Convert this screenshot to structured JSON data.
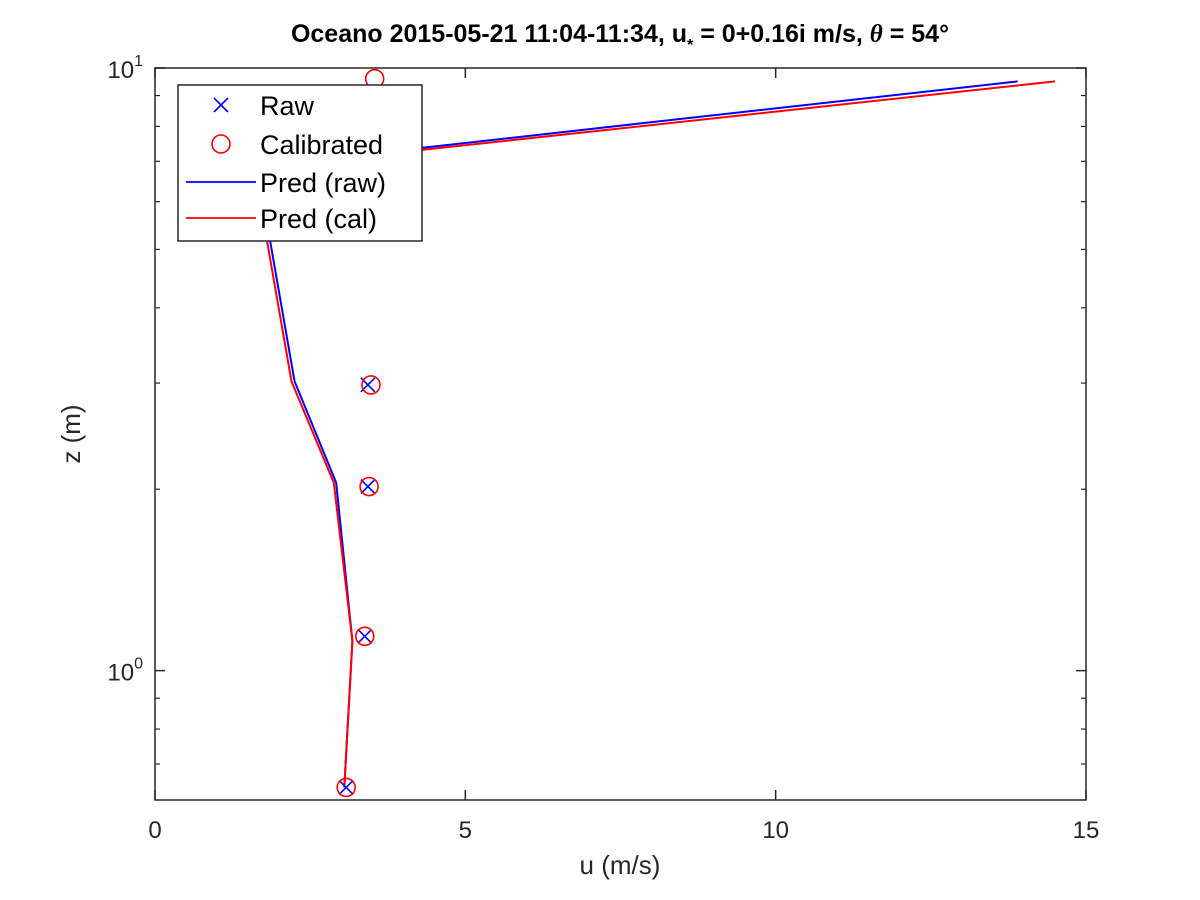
{
  "chart_data": {
    "type": "line",
    "title": {
      "prefix": "Oceano 2015-05-21 11:04-11:34, u",
      "subscript": "*",
      "middle": " = 0+0.16i m/s, ",
      "theta": "θ",
      "suffix": " = 54°"
    },
    "xlabel": "u (m/s)",
    "ylabel": "z (m)",
    "xlim": [
      0,
      15
    ],
    "ylim": [
      0.61,
      10
    ],
    "yscale": "log",
    "xticks": [
      0,
      5,
      10,
      15
    ],
    "xtick_labels": [
      "0",
      "5",
      "10",
      "15"
    ],
    "yticks": [
      1,
      10
    ],
    "ytick_labels": [
      {
        "base": "10",
        "exp": "0"
      },
      {
        "base": "10",
        "exp": "1"
      }
    ],
    "grid": false,
    "legend_position": "top-left",
    "series": [
      {
        "name": "Raw",
        "kind": "marker",
        "marker": "x",
        "color": "#0000ff",
        "x": [
          3.08,
          3.38,
          3.43,
          3.43
        ],
        "y": [
          0.64,
          1.14,
          2.02,
          2.98
        ]
      },
      {
        "name": "Calibrated",
        "kind": "marker",
        "marker": "circle",
        "color": "#ff0000",
        "x": [
          3.08,
          3.38,
          3.45,
          3.48,
          3.54
        ],
        "y": [
          0.64,
          1.14,
          2.02,
          2.98,
          9.6
        ]
      },
      {
        "name": "Pred (raw)",
        "kind": "line",
        "color": "#0000ff",
        "x": [
          3.05,
          3.18,
          2.92,
          2.25,
          1.85,
          1.8,
          13.9
        ],
        "y": [
          0.64,
          1.12,
          2.05,
          3.02,
          5.2,
          6.9,
          9.5
        ]
      },
      {
        "name": "Pred (cal)",
        "kind": "line",
        "color": "#ff0000",
        "x": [
          3.05,
          3.18,
          2.88,
          2.2,
          1.8,
          1.75,
          14.5
        ],
        "y": [
          0.64,
          1.12,
          2.05,
          3.02,
          5.2,
          6.85,
          9.5
        ]
      }
    ]
  }
}
